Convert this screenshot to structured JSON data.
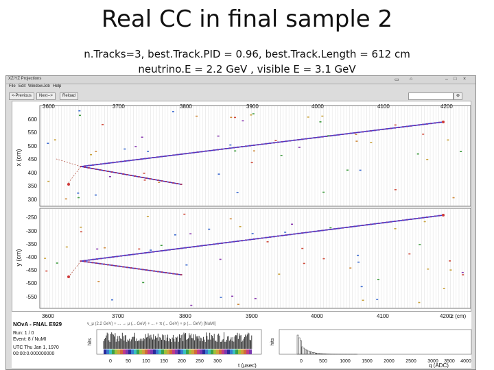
{
  "slide": {
    "title": "Real CC in final sample 2",
    "line1": "n.Tracks=3, best.Track.PID = 0.96, best.Track.Length = 612 cm",
    "line2": "neutrino.E = 2.2 GeV , visible E = 3.1 GeV"
  },
  "window": {
    "title": "XZ/YZ Projections",
    "menu": [
      "File",
      "Edit",
      "Window",
      "Job",
      "Help"
    ],
    "toolbar": {
      "prev": "<-Previous",
      "next": "Next-->",
      "reload": "Reload",
      "select_value": ""
    }
  },
  "xz_view": {
    "z_ticks": [
      "3600",
      "3700",
      "3800",
      "3900",
      "4000",
      "4100",
      "4200"
    ],
    "x_ticks": [
      "600",
      "550",
      "500",
      "450",
      "400",
      "350",
      "300"
    ],
    "axis_label": "x (cm)"
  },
  "yz_view": {
    "y_ticks": [
      "-250",
      "-300",
      "-350",
      "-400",
      "-450",
      "-500",
      "-550"
    ],
    "axis_label": "y (cm)",
    "z_ticks": [
      "3600",
      "3700",
      "3800",
      "3900",
      "4000",
      "4100",
      "4200"
    ],
    "z_label": "z (cm)"
  },
  "event_info": {
    "title": "NOvA - FNAL E929",
    "run": "Run: 1 / 0",
    "event": "Event: 8 / NuMI",
    "utc": "UTC Thu Jan 1, 1970",
    "time": "00:00:0.000000000"
  },
  "legend_line": "ν_μ (2.2 GeV) + ... → μ (... GeV) + ... + π (... GeV) + p (... GeV) [NuMI]",
  "time_hist": {
    "ylabel": "hits",
    "xlabel": "t (μsec)",
    "ticks": [
      "0",
      "50",
      "100",
      "150",
      "200",
      "250",
      "300"
    ]
  },
  "adc_hist": {
    "ylabel": "hits",
    "xlabel": "q (ADC)",
    "ticks": [
      "0",
      "500",
      "1000",
      "1500",
      "2000",
      "2500",
      "3000",
      "3500",
      "4000"
    ]
  }
}
